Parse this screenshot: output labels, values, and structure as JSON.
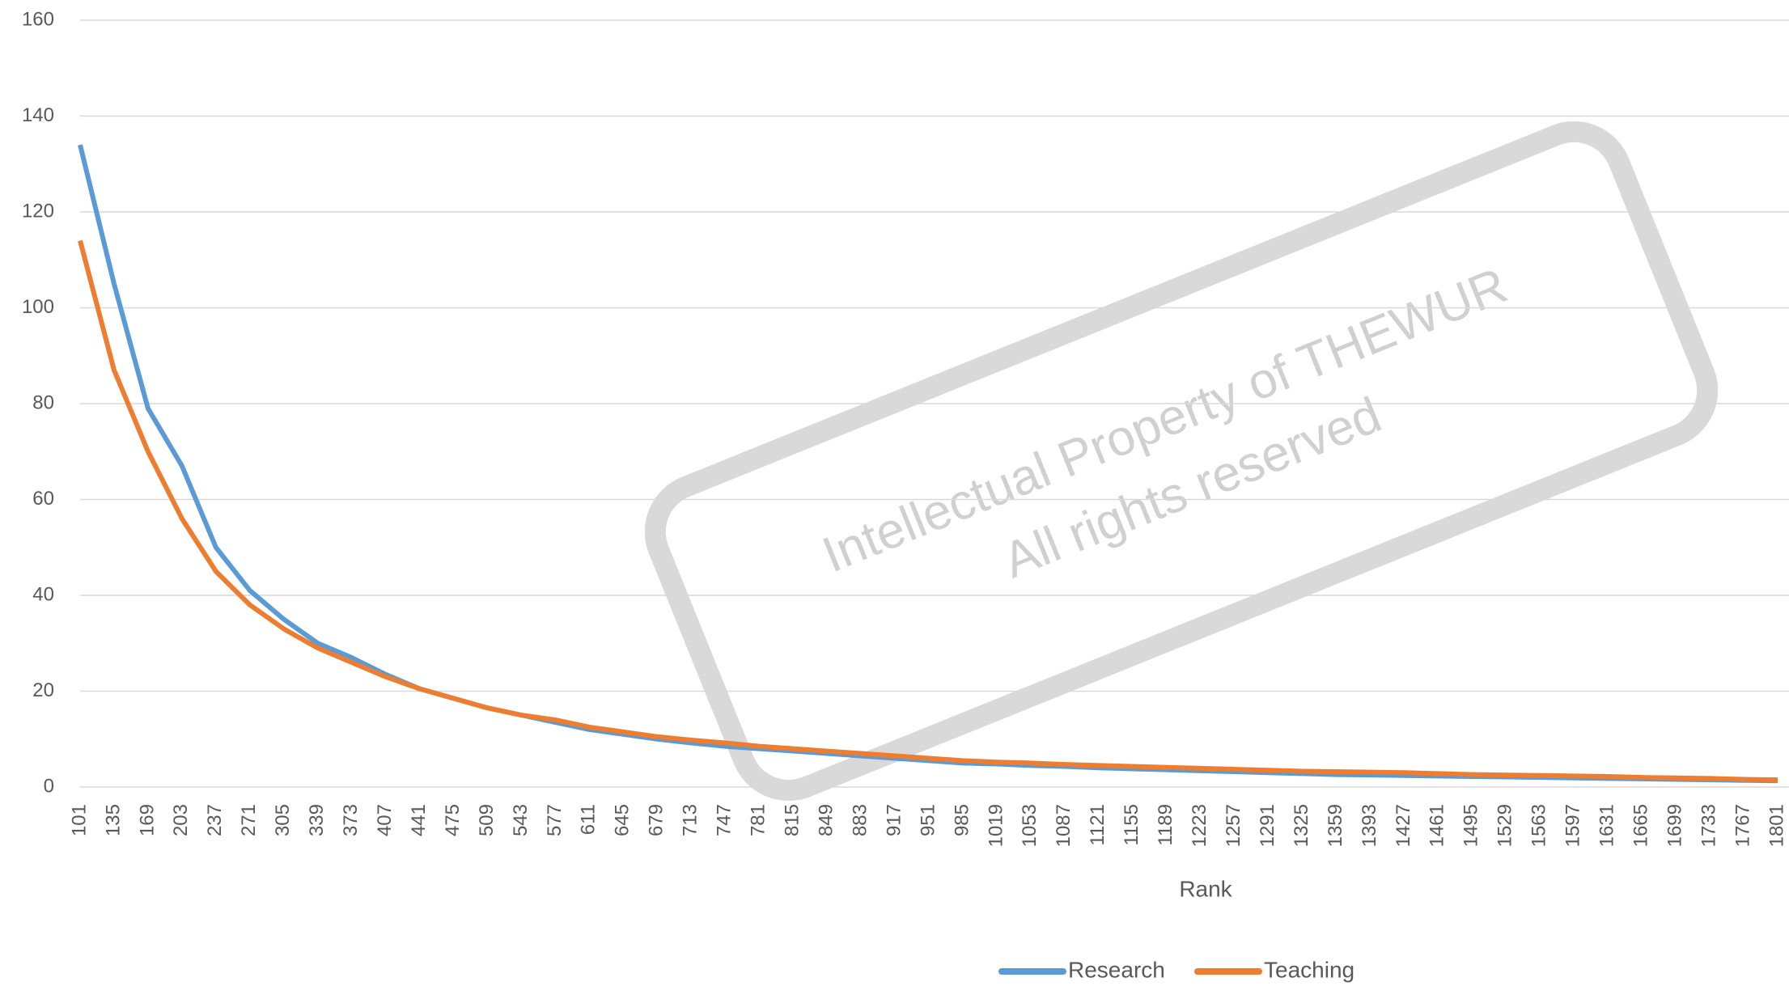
{
  "chart_data": {
    "type": "line",
    "x_label": "Rank",
    "watermark": [
      "Intellectual Property of THEWUR",
      "All rights reserved"
    ],
    "categories": [
      "101",
      "135",
      "169",
      "203",
      "237",
      "271",
      "305",
      "339",
      "373",
      "407",
      "441",
      "475",
      "509",
      "543",
      "577",
      "611",
      "645",
      "679",
      "713",
      "747",
      "781",
      "815",
      "849",
      "883",
      "917",
      "951",
      "985",
      "1019",
      "1053",
      "1087",
      "1121",
      "1155",
      "1189",
      "1223",
      "1257",
      "1291",
      "1325",
      "1359",
      "1393",
      "1427",
      "1461",
      "1495",
      "1529",
      "1563",
      "1597",
      "1631",
      "1665",
      "1699",
      "1733",
      "1767",
      "1801"
    ],
    "series": [
      {
        "name": "Research",
        "color": "#5b9bd5",
        "values": [
          134,
          105,
          79,
          67,
          50,
          41,
          35,
          30,
          27,
          23.5,
          20.5,
          18.5,
          16.5,
          15,
          13.5,
          12,
          11,
          10,
          9.2,
          8.5,
          8,
          7.5,
          7,
          6.5,
          6,
          5.5,
          5,
          4.8,
          4.5,
          4.3,
          4,
          3.8,
          3.6,
          3.4,
          3.2,
          3,
          2.8,
          2.6,
          2.5,
          2.4,
          2.3,
          2.2,
          2.1,
          2,
          1.9,
          1.8,
          1.7,
          1.6,
          1.5,
          1.4,
          1.3
        ]
      },
      {
        "name": "Teaching",
        "color": "#ed7d31",
        "values": [
          114,
          87,
          70,
          56,
          45,
          38,
          33,
          29,
          26,
          23,
          20.5,
          18.5,
          16.5,
          15,
          14,
          12.5,
          11.5,
          10.5,
          9.8,
          9.2,
          8.5,
          8,
          7.5,
          7,
          6.5,
          6,
          5.5,
          5.2,
          5,
          4.7,
          4.5,
          4.3,
          4.1,
          3.9,
          3.7,
          3.5,
          3.3,
          3.2,
          3.1,
          3,
          2.8,
          2.6,
          2.5,
          2.4,
          2.3,
          2.2,
          2,
          1.9,
          1.8,
          1.6,
          1.5
        ]
      }
    ],
    "ylim": [
      0,
      160
    ],
    "yticks": [
      0,
      20,
      40,
      60,
      80,
      100,
      120,
      140,
      160
    ],
    "grid": true,
    "legend": "bottom"
  }
}
